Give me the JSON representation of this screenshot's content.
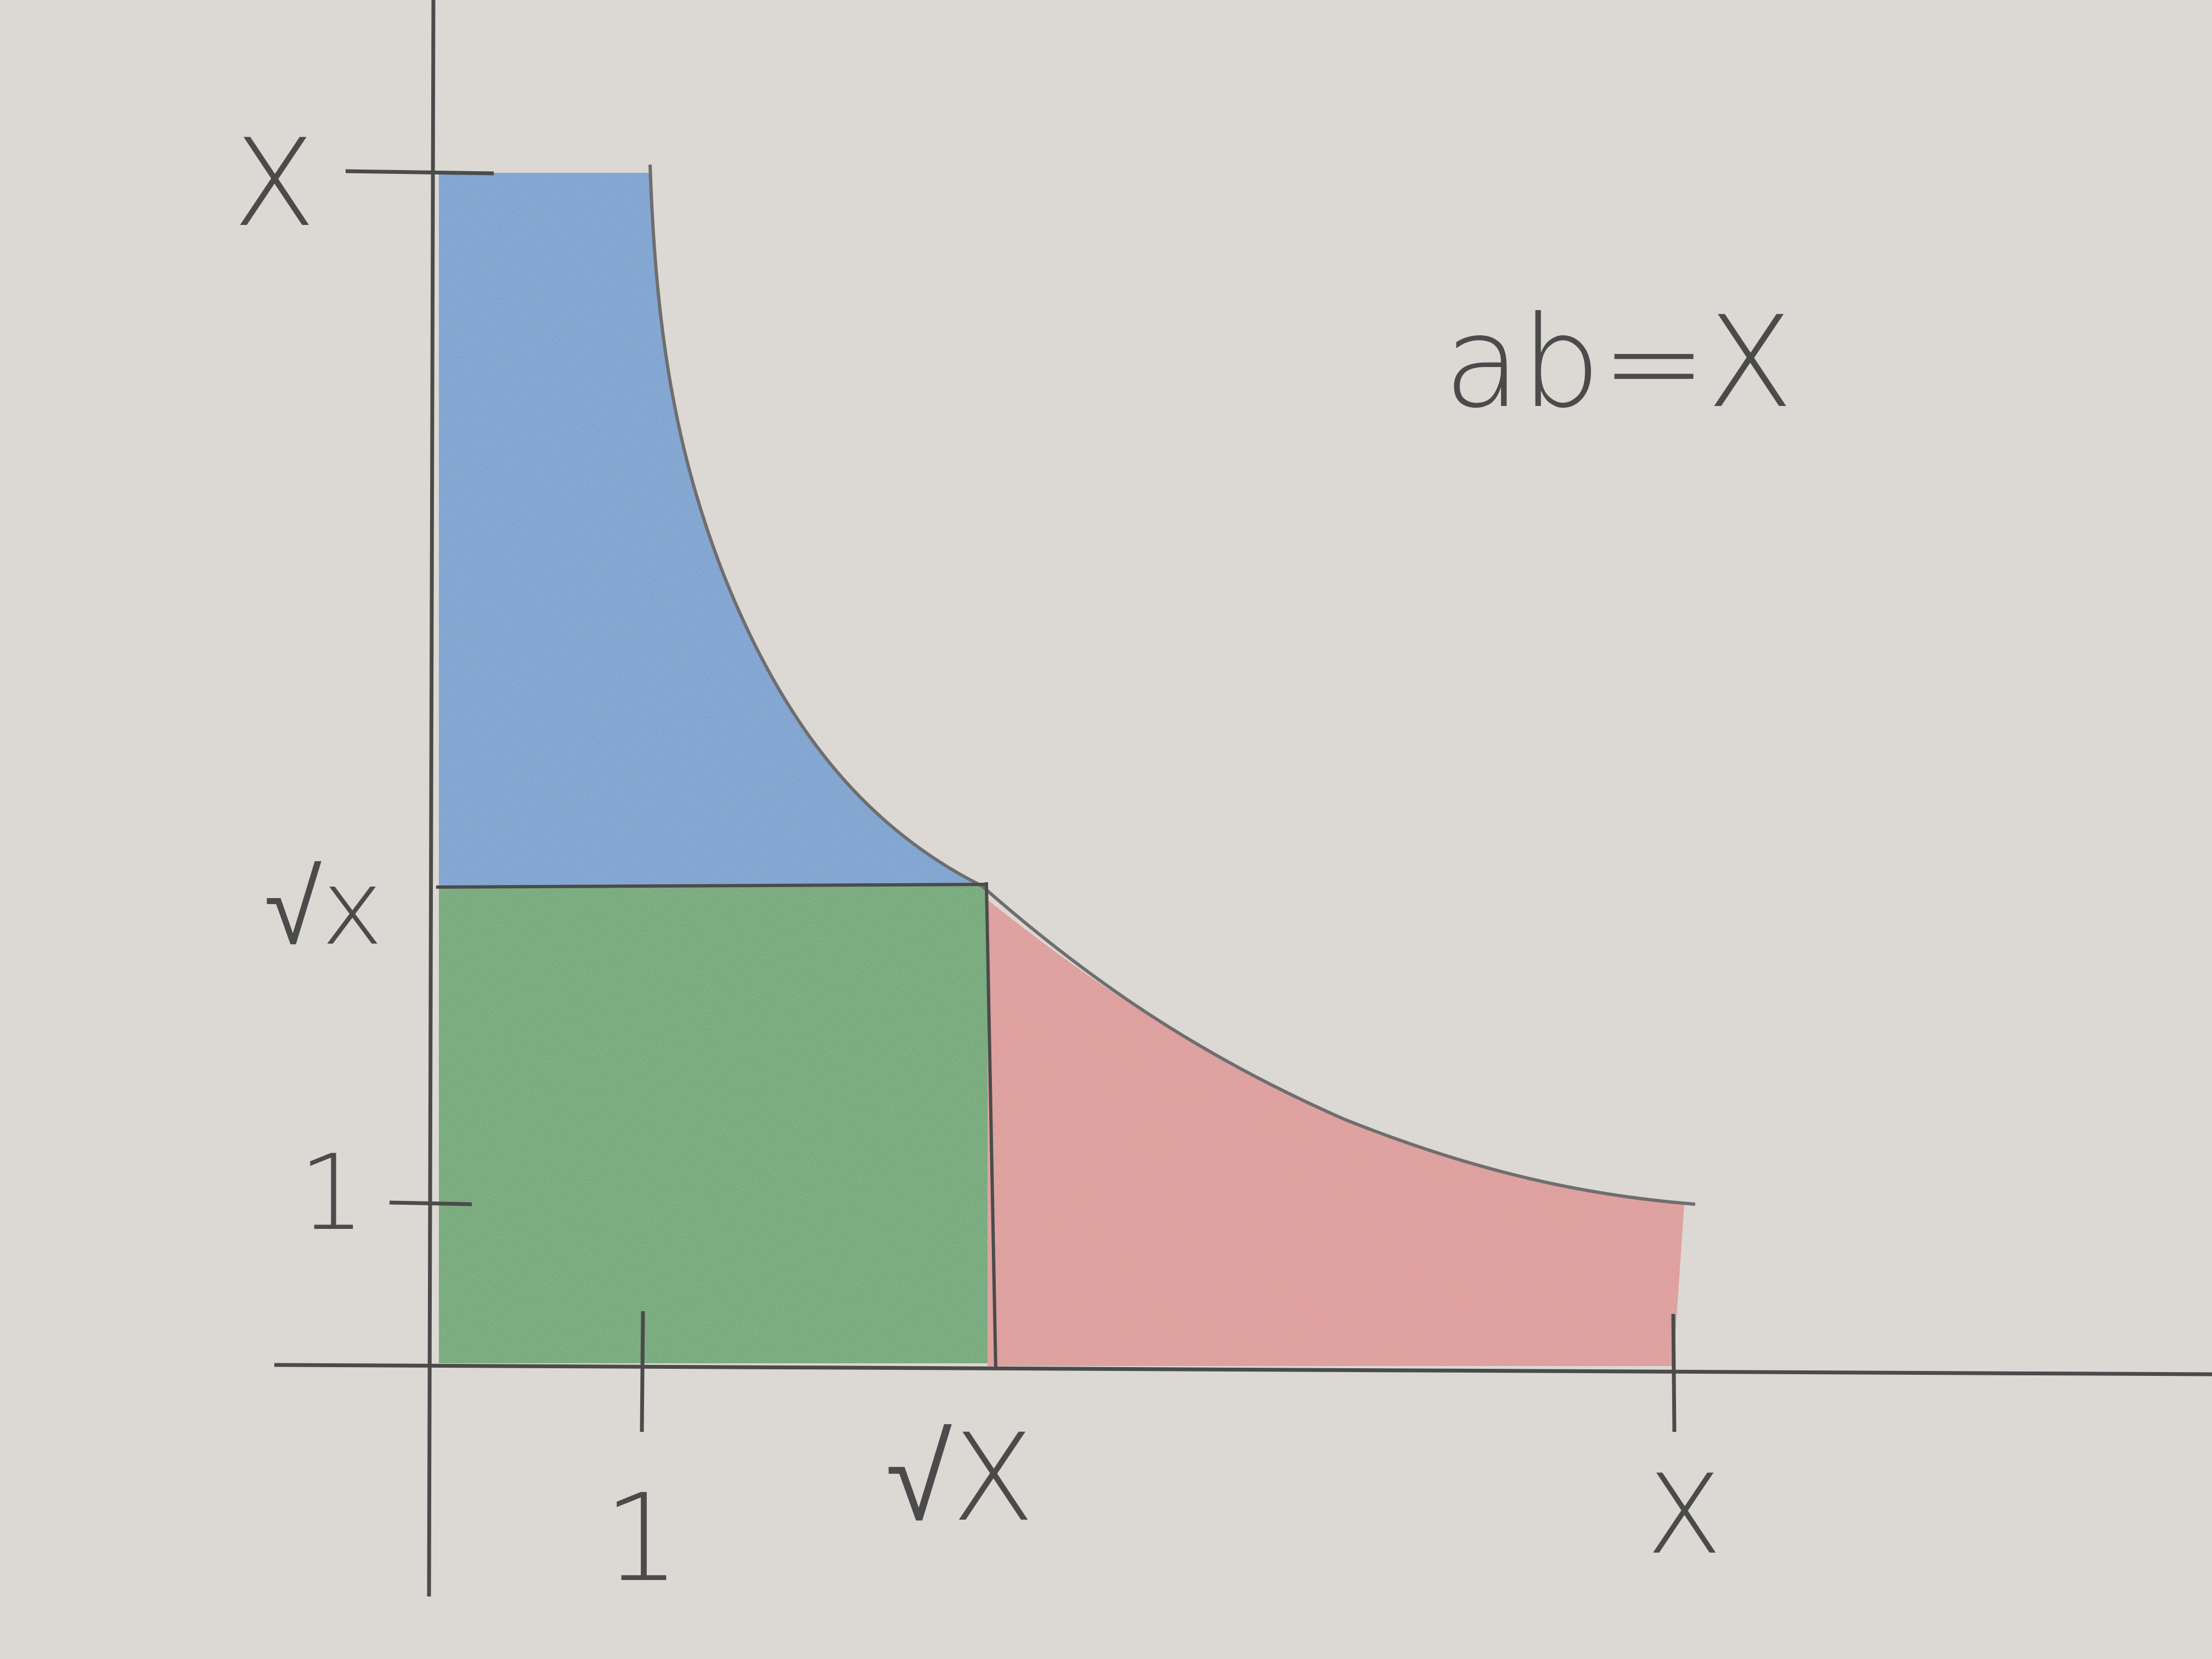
{
  "figure": {
    "equation": "ab=X",
    "y_axis_labels": {
      "top": "X",
      "middle": "√x",
      "bottom": "1"
    },
    "x_axis_labels": {
      "left": "1",
      "middle": "√X",
      "right": "X"
    },
    "colors": {
      "paper": "#dcd8d3",
      "pencil": "#4b4b4b",
      "blue_region": "#3d7fd0",
      "green_region": "#2f8a3f",
      "red_region": "#e07070"
    }
  }
}
